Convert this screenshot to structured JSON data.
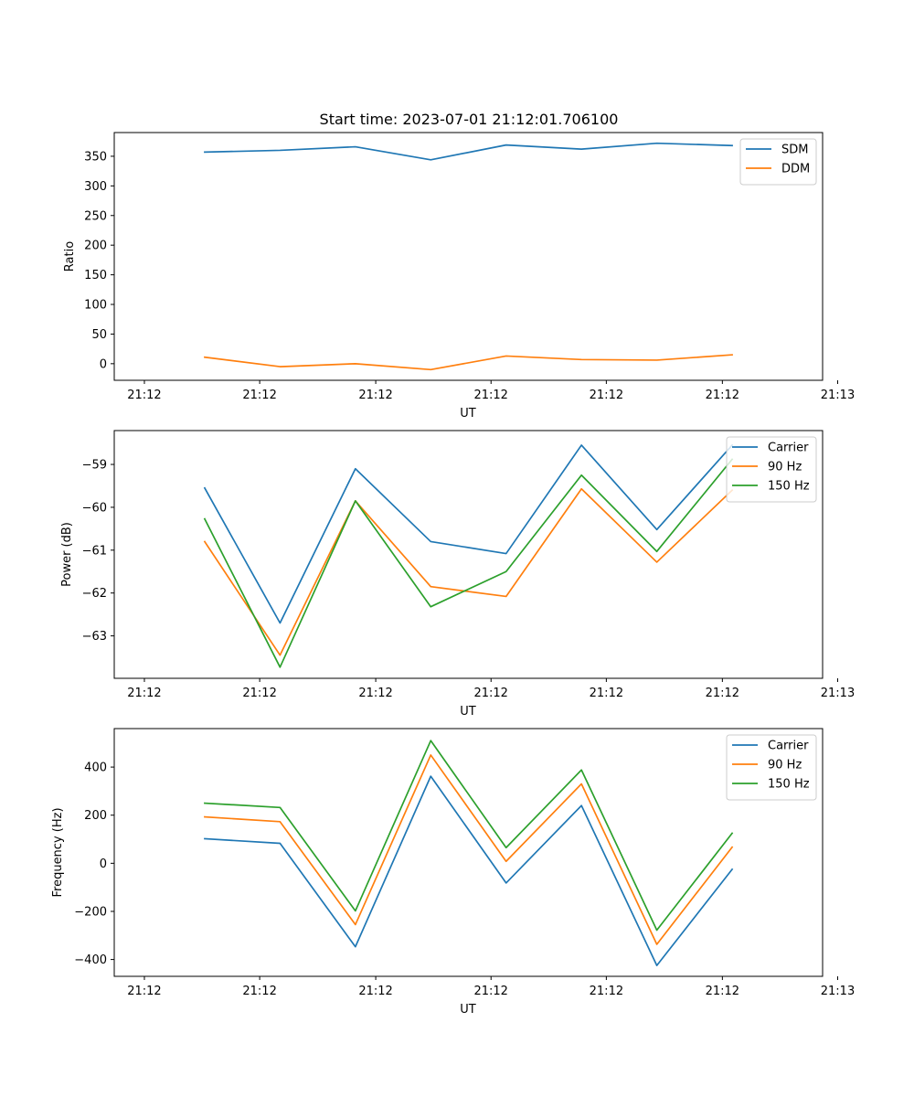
{
  "figure": {
    "title": "Start time: 2023-07-01 21:12:01.706100"
  },
  "colors": {
    "blue": "#1f77b4",
    "orange": "#ff7f0e",
    "green": "#2ca02c",
    "axes": "#000000",
    "legend_frame": "#cccccc"
  },
  "chart_data": [
    {
      "type": "line",
      "title": "Start time: 2023-07-01 21:12:01.706100",
      "xlabel": "UT",
      "ylabel": "Ratio",
      "x": [
        1,
        2,
        3,
        4,
        5,
        6,
        7,
        8
      ],
      "xlim": [
        -0.2,
        9.2
      ],
      "xticks": [
        0.2,
        1.73,
        3.27,
        4.8,
        6.33,
        7.87,
        9.4
      ],
      "xtick_labels": [
        "21:12",
        "21:12",
        "21:12",
        "21:12",
        "21:12",
        "21:12",
        "21:13"
      ],
      "ylim": [
        -28,
        390
      ],
      "yticks": [
        0,
        50,
        100,
        150,
        200,
        250,
        300,
        350
      ],
      "ytick_labels": [
        "0",
        "50",
        "100",
        "150",
        "200",
        "250",
        "300",
        "350"
      ],
      "legend_position": "top-right",
      "series": [
        {
          "name": "SDM",
          "color": "#1f77b4",
          "values": [
            357,
            360,
            366,
            344,
            369,
            362,
            372,
            368
          ]
        },
        {
          "name": "DDM",
          "color": "#ff7f0e",
          "values": [
            11,
            -5,
            0,
            -10,
            13,
            7,
            6,
            15
          ]
        }
      ]
    },
    {
      "type": "line",
      "title": "",
      "xlabel": "UT",
      "ylabel": "Power (dB)",
      "x": [
        1,
        2,
        3,
        4,
        5,
        6,
        7,
        8
      ],
      "xlim": [
        -0.2,
        9.2
      ],
      "xticks": [
        0.2,
        1.73,
        3.27,
        4.8,
        6.33,
        7.87,
        9.4
      ],
      "xtick_labels": [
        "21:12",
        "21:12",
        "21:12",
        "21:12",
        "21:12",
        "21:12",
        "21:13"
      ],
      "ylim": [
        -63.99,
        -58.21
      ],
      "yticks": [
        -63,
        -62,
        -61,
        -60,
        -59
      ],
      "ytick_labels": [
        "−63",
        "−62",
        "−61",
        "−60",
        "−59"
      ],
      "legend_position": "top-right",
      "series": [
        {
          "name": "Carrier",
          "color": "#1f77b4",
          "values": [
            -59.55,
            -62.7,
            -59.1,
            -60.8,
            -61.08,
            -58.55,
            -60.52,
            -58.55
          ]
        },
        {
          "name": "90 Hz",
          "color": "#ff7f0e",
          "values": [
            -60.8,
            -63.45,
            -59.85,
            -61.85,
            -62.08,
            -59.57,
            -61.28,
            -59.6
          ]
        },
        {
          "name": "150 Hz",
          "color": "#2ca02c",
          "values": [
            -60.27,
            -63.73,
            -59.85,
            -62.32,
            -61.5,
            -59.25,
            -61.03,
            -58.88
          ]
        }
      ]
    },
    {
      "type": "line",
      "title": "",
      "xlabel": "UT",
      "ylabel": "Frequency (Hz)",
      "x": [
        1,
        2,
        3,
        4,
        5,
        6,
        7,
        8
      ],
      "xlim": [
        -0.2,
        9.2
      ],
      "xticks": [
        0.2,
        1.73,
        3.27,
        4.8,
        6.33,
        7.87,
        9.4
      ],
      "xtick_labels": [
        "21:12",
        "21:12",
        "21:12",
        "21:12",
        "21:12",
        "21:12",
        "21:13"
      ],
      "ylim": [
        -470,
        560
      ],
      "yticks": [
        -400,
        -200,
        0,
        200,
        400
      ],
      "ytick_labels": [
        "−400",
        "−200",
        "0",
        "200",
        "400"
      ],
      "legend_position": "top-right",
      "series": [
        {
          "name": "Carrier",
          "color": "#1f77b4",
          "values": [
            102,
            83,
            -347,
            362,
            -82,
            240,
            -425,
            -25
          ]
        },
        {
          "name": "90 Hz",
          "color": "#ff7f0e",
          "values": [
            193,
            173,
            -255,
            450,
            8,
            330,
            -337,
            67
          ]
        },
        {
          "name": "150 Hz",
          "color": "#2ca02c",
          "values": [
            250,
            232,
            -198,
            510,
            65,
            388,
            -278,
            125
          ]
        }
      ]
    }
  ]
}
